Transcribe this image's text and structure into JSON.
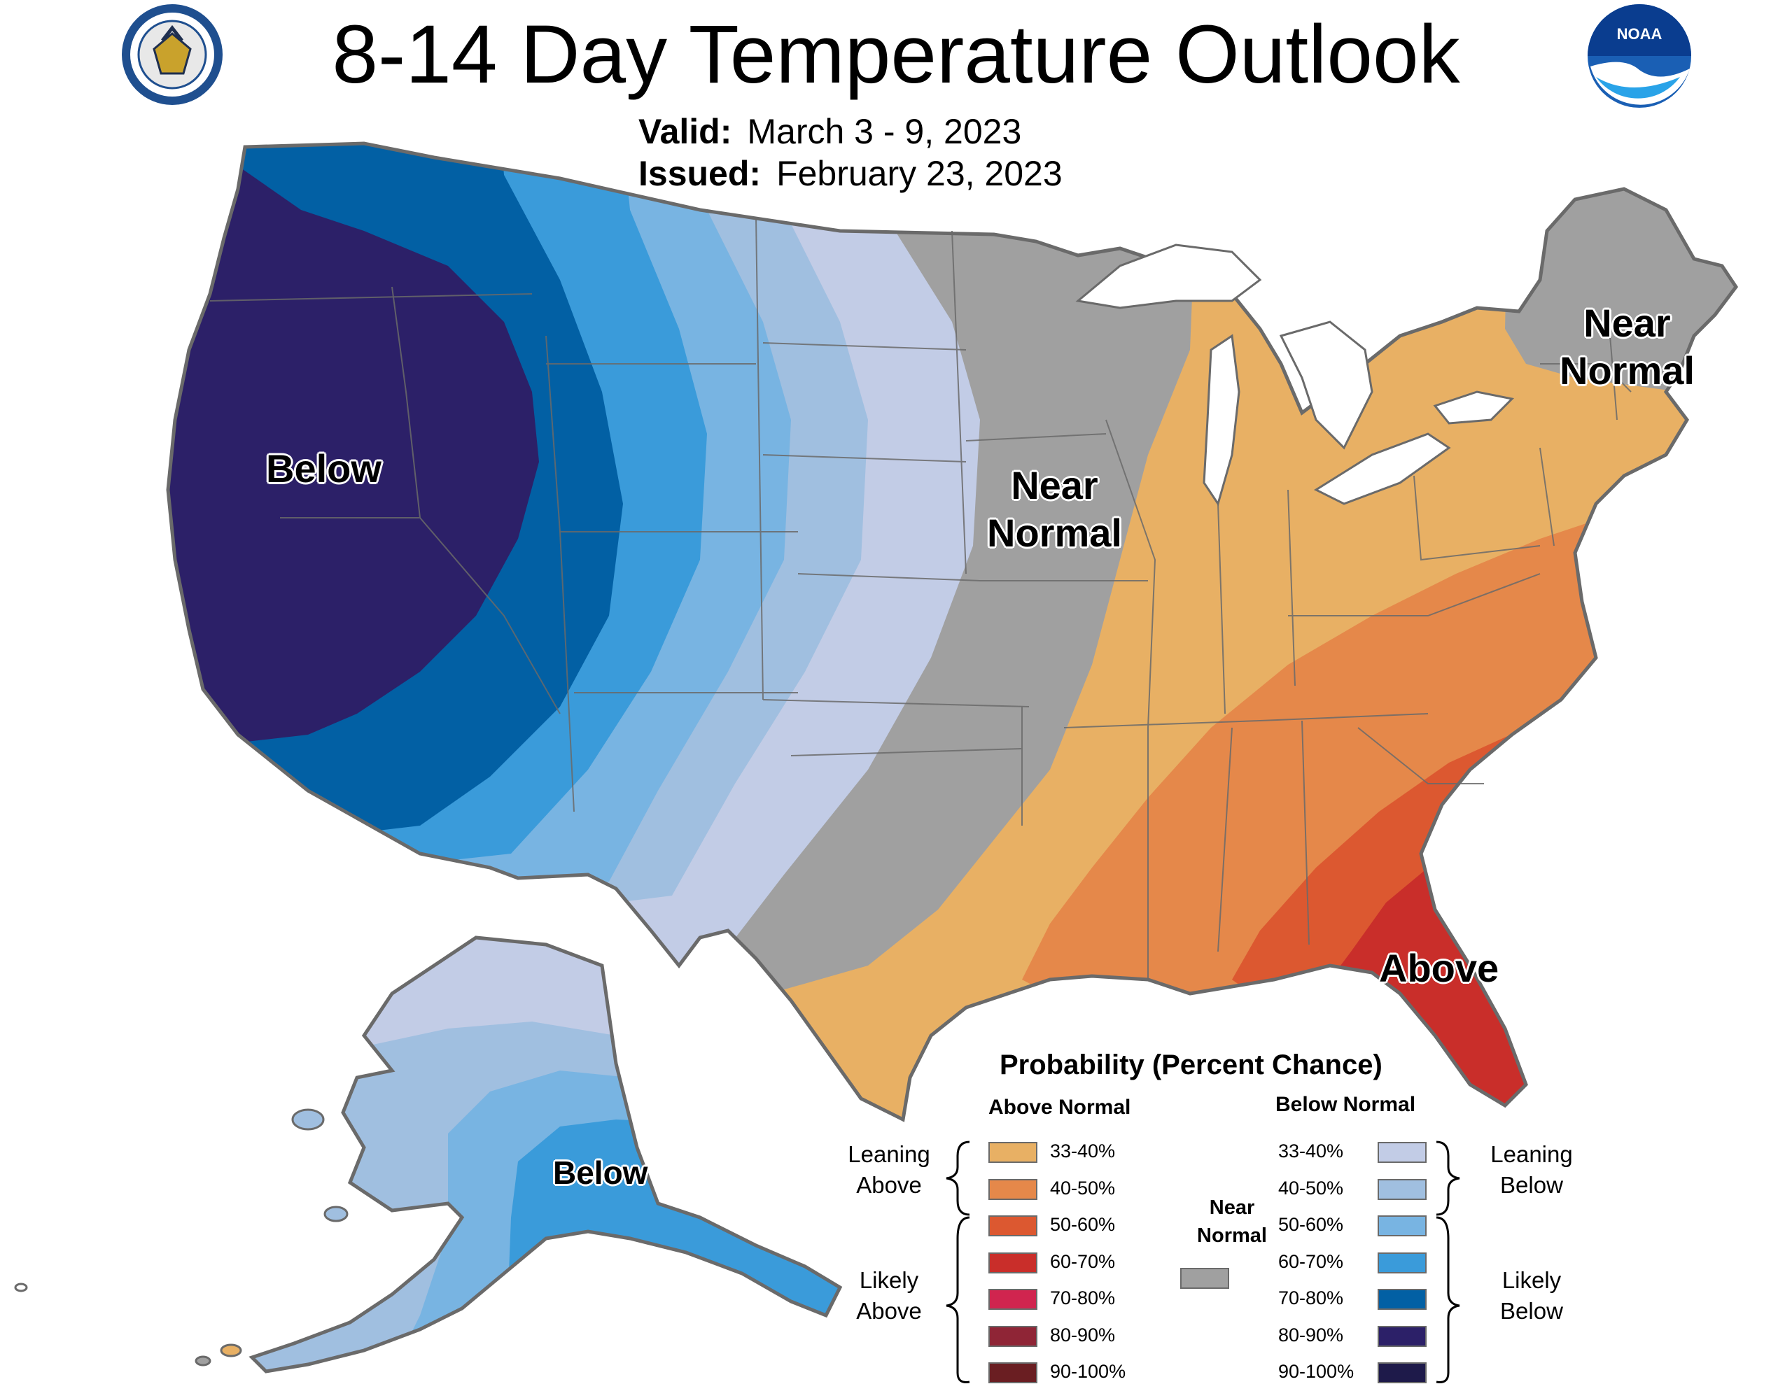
{
  "title": "8-14 Day Temperature Outlook",
  "valid_label": "Valid:",
  "valid_value": "March 3 - 9, 2023",
  "issued_label": "Issued:",
  "issued_value": "February 23, 2023",
  "logos": {
    "left": "department-of-commerce-seal",
    "right_text": "NOAA"
  },
  "map_labels": {
    "below_west": "Below",
    "near_normal_central": [
      "Near",
      "Normal"
    ],
    "near_normal_northeast": [
      "Near",
      "Normal"
    ],
    "above_southeast": "Above",
    "below_alaska": "Below"
  },
  "colors": {
    "above_33_40": "#E8B064",
    "above_40_50": "#E5884A",
    "above_50_60": "#DC5830",
    "above_60_70": "#C92E2A",
    "above_70_80": "#D0254F",
    "above_80_90": "#8F2536",
    "above_90_100": "#6A1E22",
    "near_normal": "#A0A0A0",
    "below_33_40": "#C2CCE6",
    "below_40_50": "#A0BFE0",
    "below_50_60": "#78B4E2",
    "below_60_70": "#3A9BDA",
    "below_70_80": "#0260A4",
    "below_80_90": "#2C2068",
    "below_90_100": "#1E1A4A",
    "border": "#6a6a6a"
  },
  "legend": {
    "title": "Probability (Percent Chance)",
    "above_header": "Above Normal",
    "below_header": "Below Normal",
    "near_label": [
      "Near",
      "Normal"
    ],
    "leaning_above": [
      "Leaning",
      "Above"
    ],
    "likely_above": [
      "Likely",
      "Above"
    ],
    "leaning_below": [
      "Leaning",
      "Below"
    ],
    "likely_below": [
      "Likely",
      "Below"
    ],
    "above": [
      {
        "range": "33-40%",
        "color": "#E8B064"
      },
      {
        "range": "40-50%",
        "color": "#E5884A"
      },
      {
        "range": "50-60%",
        "color": "#DC5830"
      },
      {
        "range": "60-70%",
        "color": "#C92E2A"
      },
      {
        "range": "70-80%",
        "color": "#D0254F"
      },
      {
        "range": "80-90%",
        "color": "#8F2536"
      },
      {
        "range": "90-100%",
        "color": "#6A1E22"
      }
    ],
    "below": [
      {
        "range": "33-40%",
        "color": "#C2CCE6"
      },
      {
        "range": "40-50%",
        "color": "#A0BFE0"
      },
      {
        "range": "50-60%",
        "color": "#78B4E2"
      },
      {
        "range": "60-70%",
        "color": "#3A9BDA"
      },
      {
        "range": "70-80%",
        "color": "#0260A4"
      },
      {
        "range": "80-90%",
        "color": "#2C2068"
      },
      {
        "range": "90-100%",
        "color": "#1E1A4A"
      }
    ]
  }
}
